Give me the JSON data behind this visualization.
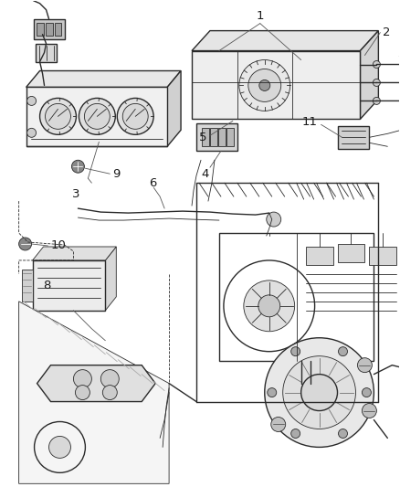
{
  "bg_color": "#ffffff",
  "line_color": "#2a2a2a",
  "label_color": "#1a1a1a",
  "figsize": [
    4.38,
    5.33
  ],
  "dpi": 100,
  "annotation_fontsize": 8.5,
  "lw_thin": 0.6,
  "lw_med": 1.0,
  "lw_thick": 1.4,
  "gray_light": "#c8c8c8",
  "gray_med": "#999999",
  "gray_dark": "#555555"
}
